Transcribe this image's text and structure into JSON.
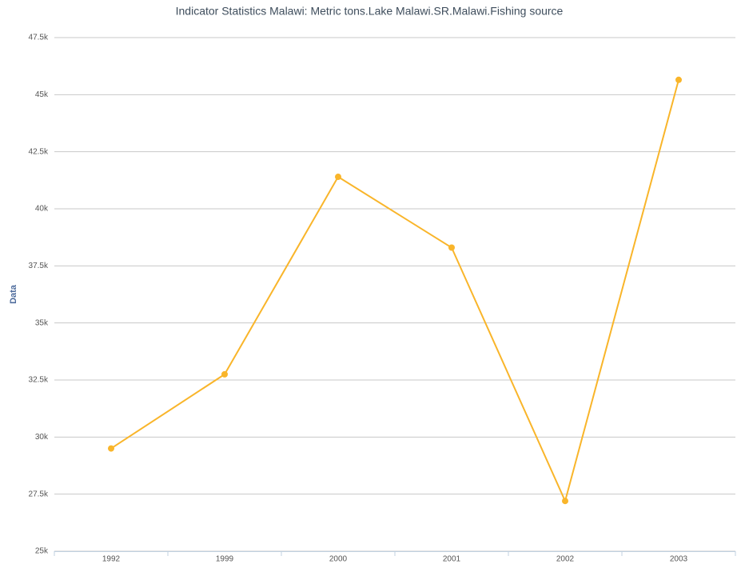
{
  "chart_data": {
    "type": "line",
    "title": "Indicator Statistics Malawi: Metric tons.Lake Malawi.SR.Malawi.Fishing source",
    "y_label": "Data",
    "categories": [
      "1992",
      "1999",
      "2000",
      "2001",
      "2002",
      "2003"
    ],
    "series": [
      {
        "name": "Data",
        "color": "#f9b52a",
        "values": [
          29500,
          32750,
          41400,
          38300,
          27200,
          45650
        ]
      }
    ],
    "ylim": [
      25000,
      47500
    ],
    "yticks": [
      {
        "value": 25000,
        "label": "25k"
      },
      {
        "value": 27500,
        "label": "27.5k"
      },
      {
        "value": 30000,
        "label": "30k"
      },
      {
        "value": 32500,
        "label": "32.5k"
      },
      {
        "value": 35000,
        "label": "35k"
      },
      {
        "value": 37500,
        "label": "37.5k"
      },
      {
        "value": 40000,
        "label": "40k"
      },
      {
        "value": 42500,
        "label": "42.5k"
      },
      {
        "value": 45000,
        "label": "45k"
      },
      {
        "value": 47500,
        "label": "47.5k"
      }
    ],
    "grid": true
  }
}
